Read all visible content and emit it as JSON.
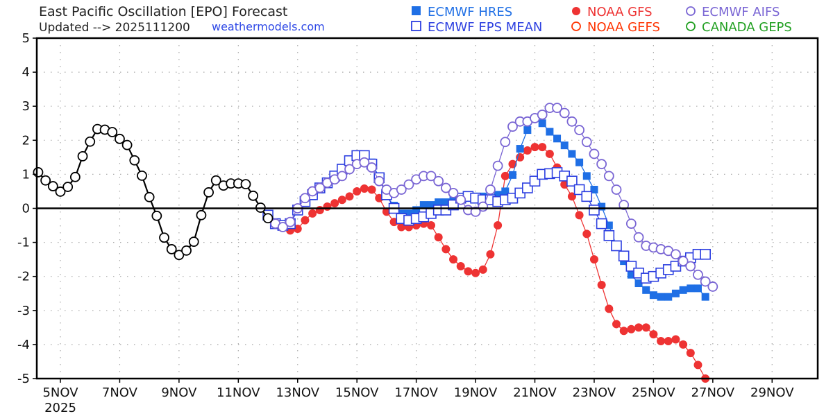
{
  "chart_data": {
    "type": "line",
    "title": "East Pacific Oscillation [EPO] Forecast",
    "subtitle": "Updated --> 2025111200",
    "source_text": "weathermodels.com",
    "xlabel": "",
    "ylabel": "",
    "ylim": [
      -5,
      5
    ],
    "yticks": [
      5,
      4,
      3,
      2,
      1,
      0,
      -1,
      -2,
      -3,
      -4,
      -5
    ],
    "x_unit": "6-hourly steps relative to 5 NOV 2025 00Z",
    "xlim_days": [
      "2025-11-04T06",
      "2025-11-30T12"
    ],
    "xticks": [
      {
        "label": "5NOV",
        "day": 5
      },
      {
        "label": "7NOV",
        "day": 7
      },
      {
        "label": "9NOV",
        "day": 9
      },
      {
        "label": "11NOV",
        "day": 11
      },
      {
        "label": "13NOV",
        "day": 13
      },
      {
        "label": "15NOV",
        "day": 15
      },
      {
        "label": "17NOV",
        "day": 17
      },
      {
        "label": "19NOV",
        "day": 19
      },
      {
        "label": "21NOV",
        "day": 21
      },
      {
        "label": "23NOV",
        "day": 23
      },
      {
        "label": "25NOV",
        "day": 25
      },
      {
        "label": "27NOV",
        "day": 27
      },
      {
        "label": "29NOV",
        "day": 29
      }
    ],
    "year_label": "2025",
    "grid": true,
    "legend_placement": "top-right",
    "series": [
      {
        "name": "Observed",
        "in_legend": false,
        "color": "#000000",
        "marker": "open-circle",
        "start_step": -3,
        "values": [
          1.06,
          0.82,
          0.65,
          0.49,
          0.63,
          0.92,
          1.53,
          1.96,
          2.33,
          2.31,
          2.24,
          2.04,
          1.86,
          1.41,
          0.96,
          0.33,
          -0.22,
          -0.86,
          -1.2,
          -1.37,
          -1.24,
          -0.98,
          -0.2,
          0.47,
          0.82,
          0.67,
          0.73,
          0.73,
          0.71,
          0.37,
          0.02,
          -0.29
        ]
      },
      {
        "name": "ECMWF HRES",
        "in_legend": true,
        "color": "#1f6fe5",
        "marker": "filled-square",
        "start_step": 28,
        "values": [
          -0.2,
          -0.45,
          -0.5,
          -0.45,
          -0.05,
          0.15,
          0.35,
          0.55,
          0.75,
          0.9,
          1.1,
          1.35,
          1.5,
          1.5,
          1.35,
          0.9,
          0.35,
          0.08,
          -0.15,
          -0.15,
          -0.05,
          0.1,
          0.1,
          0.18,
          0.18,
          0.25,
          0.33,
          0.35,
          0.35,
          0.35,
          0.3,
          0.4,
          0.5,
          0.98,
          1.75,
          2.3,
          2.65,
          2.5,
          2.25,
          2.05,
          1.85,
          1.6,
          1.35,
          0.95,
          0.55,
          0.05,
          -0.5,
          -1.1,
          -1.55,
          -1.95,
          -2.2,
          -2.4,
          -2.55,
          -2.6,
          -2.6,
          -2.5,
          -2.4,
          -2.35,
          -2.35,
          -2.6
        ]
      },
      {
        "name": "ECMWF EPS MEAN",
        "in_legend": true,
        "color": "#2c3fe0",
        "marker": "open-square",
        "start_step": 28,
        "values": [
          -0.2,
          -0.45,
          -0.5,
          -0.45,
          -0.05,
          0.2,
          0.4,
          0.6,
          0.75,
          0.95,
          1.15,
          1.4,
          1.55,
          1.55,
          1.3,
          0.9,
          0.4,
          0.0,
          -0.3,
          -0.35,
          -0.3,
          -0.25,
          -0.15,
          -0.05,
          -0.05,
          0.1,
          0.3,
          0.35,
          0.3,
          0.25,
          0.25,
          0.2,
          0.25,
          0.3,
          0.45,
          0.6,
          0.8,
          1.0,
          1.02,
          1.05,
          0.95,
          0.8,
          0.55,
          0.35,
          -0.05,
          -0.45,
          -0.8,
          -1.1,
          -1.4,
          -1.7,
          -1.9,
          -2.05,
          -2.0,
          -1.9,
          -1.8,
          -1.7,
          -1.55,
          -1.45,
          -1.35,
          -1.35
        ]
      },
      {
        "name": "NOAA GFS",
        "in_legend": true,
        "color": "#ee3333",
        "marker": "filled-circle",
        "start_step": 30,
        "values": [
          -0.55,
          -0.65,
          -0.6,
          -0.35,
          -0.15,
          -0.05,
          0.05,
          0.15,
          0.25,
          0.35,
          0.5,
          0.58,
          0.55,
          0.3,
          -0.1,
          -0.4,
          -0.55,
          -0.55,
          -0.5,
          -0.45,
          -0.5,
          -0.85,
          -1.2,
          -1.5,
          -1.7,
          -1.85,
          -1.9,
          -1.8,
          -1.35,
          -0.5,
          0.95,
          1.3,
          1.5,
          1.7,
          1.8,
          1.8,
          1.6,
          1.2,
          0.7,
          0.35,
          -0.2,
          -0.75,
          -1.5,
          -2.25,
          -2.95,
          -3.4,
          -3.6,
          -3.55,
          -3.5,
          -3.5,
          -3.7,
          -3.9,
          -3.9,
          -3.85,
          -4.0,
          -4.25,
          -4.6,
          -5.0
        ]
      },
      {
        "name": "ECMWF AIFS",
        "in_legend": true,
        "color": "#7a66d4",
        "marker": "open-circle",
        "start_step": 29,
        "values": [
          -0.45,
          -0.55,
          -0.4,
          0.0,
          0.3,
          0.5,
          0.6,
          0.75,
          0.85,
          0.95,
          1.15,
          1.3,
          1.35,
          1.2,
          0.8,
          0.55,
          0.45,
          0.55,
          0.7,
          0.85,
          0.95,
          0.95,
          0.8,
          0.6,
          0.45,
          0.25,
          -0.05,
          -0.1,
          0.05,
          0.55,
          1.25,
          1.95,
          2.4,
          2.55,
          2.55,
          2.65,
          2.75,
          2.95,
          2.95,
          2.8,
          2.55,
          2.3,
          1.95,
          1.6,
          1.3,
          0.95,
          0.55,
          0.1,
          -0.45,
          -0.85,
          -1.1,
          -1.15,
          -1.2,
          -1.25,
          -1.35,
          -1.55,
          -1.7,
          -1.95,
          -2.15,
          -2.3
        ]
      },
      {
        "name": "NOAA GEFS",
        "in_legend": true,
        "color": "#ff3300",
        "marker": "open-circle",
        "start_step": null,
        "values": []
      },
      {
        "name": "CANADA GEPS",
        "in_legend": true,
        "color": "#22a022",
        "marker": "open-circle",
        "start_step": null,
        "values": []
      }
    ]
  }
}
